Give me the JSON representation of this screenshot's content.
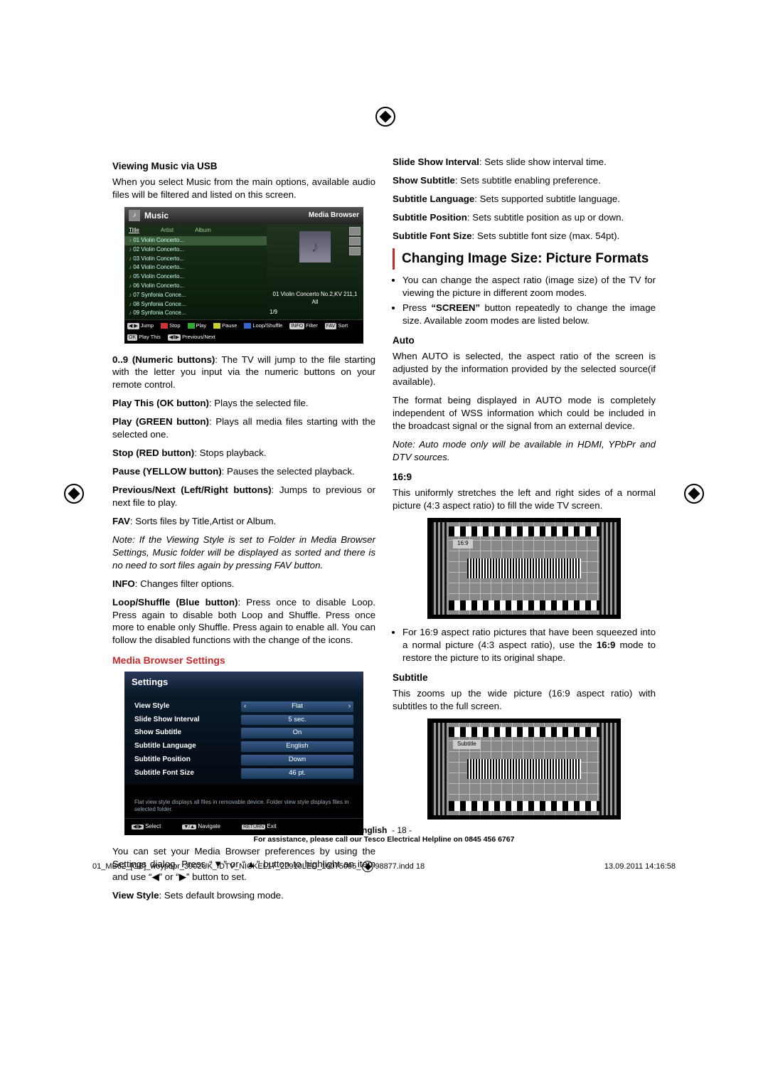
{
  "registration_marks": true,
  "left": {
    "h_viewing": "Viewing Music via USB",
    "p_viewing": "When you select Music from the main options, available audio files will be filtered and listed on this screen.",
    "music": {
      "title": "Music",
      "mb": "Media Browser",
      "tabs": [
        "Title",
        "Artist",
        "Album"
      ],
      "rows": [
        "01 Violin Concerto...",
        "02 Violin Concerto...",
        "03 Violin Concerto...",
        "04 Violin Concerto...",
        "05 Violin Concerto...",
        "06 Violin Concerto...",
        "07 Synfonia Conce...",
        "08 Synfonia Conce...",
        "09 Synfonia Conce..."
      ],
      "preview_title": "01 Violin Concerto No.2,KV 211,1 All",
      "count": "1/9",
      "footer": {
        "jump": "Jump",
        "filter": "Filter",
        "stop": "Stop",
        "sort": "Sort",
        "play": "Play",
        "play_this": "Play This",
        "pause": "Pause",
        "prevnext": "Previous/Next",
        "loop": "Loop/Shuffle",
        "info": "INFO",
        "fav": "FAV",
        "ok": "OK"
      }
    },
    "items": [
      {
        "b": "0..9 (Numeric buttons)",
        "t": ": The TV will jump to the file starting with the letter you input via the numeric buttons on your remote control."
      },
      {
        "b": "Play This (OK button)",
        "t": ": Plays the selected file."
      },
      {
        "b": "Play (GREEN button)",
        "t": ": Plays all media files starting with the selected one."
      },
      {
        "b": "Stop (RED button)",
        "t": ": Stops playback."
      },
      {
        "b": "Pause (YELLOW button)",
        "t": ": Pauses the selected playback."
      },
      {
        "b": "Previous/Next (Left/Right buttons)",
        "t": ": Jumps to previous or next file to play."
      },
      {
        "b": "FAV",
        "t": ": Sorts files by Title,Artist or Album."
      }
    ],
    "note": "Note: If the Viewing Style is set to Folder in Media Browser Settings, Music folder will be displayed as sorted and there is no need to sort files again by pressing FAV button.",
    "info_line": {
      "b": "INFO",
      "t": ": Changes filter options."
    },
    "loop_line": {
      "b": "Loop/Shuffle (Blue button)",
      "t": ": Press once to disable Loop. Press again to disable both Loop and Shuffle. Press once more to enable only Shuffle. Press again to enable all. You can follow the disabled functions with the change of the icons."
    },
    "h_settings": "Media Browser Settings",
    "settings": {
      "title": "Settings",
      "rows": [
        {
          "l": "View Style",
          "v": "Flat",
          "sel": true
        },
        {
          "l": "Slide Show Interval",
          "v": "5 sec."
        },
        {
          "l": "Show Subtitle",
          "v": "On"
        },
        {
          "l": "Subtitle Language",
          "v": "English"
        },
        {
          "l": "Subtitle Position",
          "v": "Down"
        },
        {
          "l": "Subtitle Font Size",
          "v": "46 pt."
        }
      ],
      "hint": "Flat view style displays all files in removable device. Folder view style displays files in selected folder.",
      "footer": {
        "select": "Select",
        "navigate": "Navigate",
        "exit": "Exit",
        "return": "RETURN"
      }
    },
    "p_settings": "You can set your Media Browser preferences by using the Settings dialog. Press “▼” or “▲” button to highlight an item and use “◀” or “▶” button to set.",
    "view_style": {
      "b": "View Style",
      "t": ": Sets default browsing mode."
    }
  },
  "right": {
    "lines": [
      {
        "b": "Slide Show Interval",
        "t": ": Sets slide show interval time."
      },
      {
        "b": "Show Subtitle",
        "t": ": Sets subtitle enabling preference."
      },
      {
        "b": "Subtitle Language",
        "t": ": Sets supported subtitle language."
      },
      {
        "b": "Subtitle Position",
        "t": ": Sets subtitle position as up or down."
      },
      {
        "b": "Subtitle Font Size",
        "t": ": Sets subtitle font size (max. 54pt)."
      }
    ],
    "section": "Changing Image Size: Picture Formats",
    "bullets": [
      "You can change the aspect ratio (image size) of the TV for viewing the picture in different zoom modes.",
      "Press “SCREEN” button repeatedly to change the image size. Available zoom modes are listed below."
    ],
    "bullet_bold": "“SCREEN”",
    "h_auto": "Auto",
    "p_auto1": "When AUTO is selected, the aspect ratio of the screen is adjusted by the information provided by the selected source(if available).",
    "p_auto2": "The format being displayed in AUTO mode is completely independent of WSS information which could be included in the broadcast signal or the signal from an external device.",
    "note_auto": "Note: Auto mode only will be available in HDMI, YPbPr and DTV sources.",
    "h_169": "16:9",
    "p_169": "This uniformly stretches the left and right sides of a normal picture (4:3 aspect ratio) to fill the wide TV screen.",
    "tv1_label": "16:9",
    "p_169b": "For 16:9 aspect ratio pictures that have been squeezed into a normal picture (4:3 aspect ratio), use the 16:9 mode to restore the picture to its original shape.",
    "p_169b_bold": "16:9",
    "h_sub": "Subtitle",
    "p_sub": "This zooms up the wide picture (16:9 aspect ratio) with subtitles to the full screen.",
    "tv2_label": "Subtitle"
  },
  "footer": {
    "lang": "English",
    "page": "- 18 -",
    "help": "For assistance, please call our Tesco Electrical Helpline on 0845 456 6767"
  },
  "printmeta": {
    "file": "01_MB62_[GB]_woypbpr_3902UK_IDTV_NICKEL17_22910LED_10075095_",
    "file2": "98877.indd   18",
    "ts": "13.09.2011   14:16:58"
  }
}
